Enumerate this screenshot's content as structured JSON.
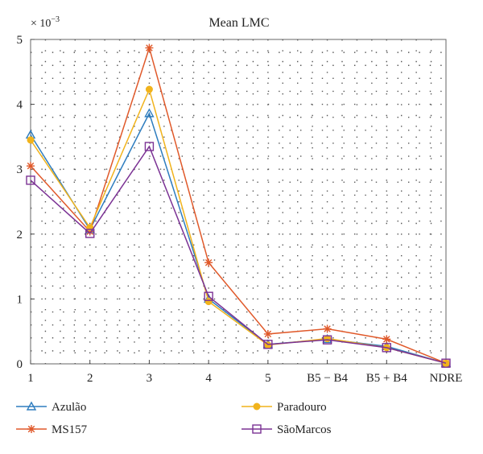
{
  "chart_data": {
    "type": "line",
    "title": "Mean LMC",
    "y_multiplier_label": "× 10",
    "y_multiplier_exponent": "−3",
    "categories": [
      "1",
      "2",
      "3",
      "4",
      "5",
      "B5 − B4",
      "B5 + B4",
      "NDRE"
    ],
    "ylim": [
      0,
      5
    ],
    "yticks": [
      "0",
      "1",
      "2",
      "3",
      "4",
      "5"
    ],
    "grid": true,
    "legend_position": "bottom",
    "series": [
      {
        "name": "Azulão",
        "color": "#2e7dbf",
        "marker": "triangle",
        "values": [
          3.53,
          2.07,
          3.86,
          1.0,
          0.3,
          0.38,
          0.27,
          0.01
        ]
      },
      {
        "name": "MS157",
        "color": "#e0592a",
        "marker": "star",
        "values": [
          3.05,
          2.04,
          4.87,
          1.56,
          0.46,
          0.54,
          0.38,
          0.01
        ]
      },
      {
        "name": "Paradouro",
        "color": "#f1b31c",
        "marker": "circle",
        "values": [
          3.45,
          2.1,
          4.23,
          0.96,
          0.29,
          0.39,
          0.25,
          0.01
        ]
      },
      {
        "name": "SãoMarcos",
        "color": "#7b3294",
        "marker": "square",
        "values": [
          2.83,
          2.01,
          3.35,
          1.04,
          0.3,
          0.37,
          0.25,
          0.01
        ]
      }
    ]
  }
}
